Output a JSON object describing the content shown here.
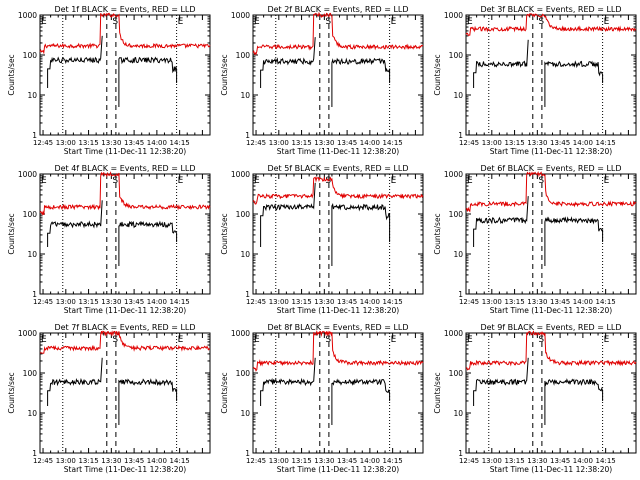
{
  "figure": {
    "ylabel": "Counts/sec",
    "xlabel": "Start Time (11-Dec-11 12:38:20)",
    "x_tick_labels": [
      "12:45",
      "13:00",
      "13:15",
      "13:30",
      "13:45",
      "14:00",
      "14:15"
    ],
    "y_tick_labels": [
      "1",
      "10",
      "100",
      "1000"
    ],
    "marker_letters": {
      "E": "E",
      "S": "S"
    },
    "colors": {
      "events": "#000000",
      "lld": "#e00000",
      "axes": "#000000"
    }
  },
  "chart_data": [
    {
      "type": "line",
      "title": "Det 1f BLACK = Events, RED = LLD",
      "x_range_min": [
        43,
        155
      ],
      "ylim": [
        1,
        1000
      ],
      "y_scale": "log",
      "grid_dotted_x_min": [
        58,
        133
      ],
      "dashed_x_min": [
        87,
        93
      ],
      "markers": [
        {
          "label": "E",
          "x_min": 43
        },
        {
          "label": "S",
          "x_min": 90
        },
        {
          "label": "E",
          "x_min": 133
        }
      ],
      "events": {
        "level": 75,
        "rise_start": 48,
        "peak_start": 83,
        "peak_end": 95,
        "end": 133
      },
      "lld": {
        "level": 170,
        "peak": 1000,
        "decay": 1.1,
        "end": 155
      }
    },
    {
      "type": "line",
      "title": "Det 2f BLACK = Events, RED = LLD",
      "x_range_min": [
        43,
        155
      ],
      "ylim": [
        1,
        1000
      ],
      "y_scale": "log",
      "grid_dotted_x_min": [
        58,
        133
      ],
      "dashed_x_min": [
        87,
        93
      ],
      "markers": [
        {
          "label": "E",
          "x_min": 43
        },
        {
          "label": "S",
          "x_min": 90
        },
        {
          "label": "E",
          "x_min": 133
        }
      ],
      "events": {
        "level": 70,
        "rise_start": 48,
        "peak_start": 83,
        "peak_end": 95,
        "end": 133
      },
      "lld": {
        "level": 160,
        "peak": 1000,
        "decay": 1.1,
        "end": 155
      }
    },
    {
      "type": "line",
      "title": "Det 3f BLACK = Events, RED = LLD",
      "x_range_min": [
        43,
        155
      ],
      "ylim": [
        1,
        1000
      ],
      "y_scale": "log",
      "grid_dotted_x_min": [
        58,
        133
      ],
      "dashed_x_min": [
        87,
        93
      ],
      "markers": [
        {
          "label": "E",
          "x_min": 43
        },
        {
          "label": "S",
          "x_min": 90
        },
        {
          "label": "E",
          "x_min": 133
        }
      ],
      "events": {
        "level": 60,
        "rise_start": 48,
        "peak_start": 83,
        "peak_end": 95,
        "end": 133
      },
      "lld": {
        "level": 450,
        "peak": 1000,
        "decay": 1.1,
        "end": 155
      }
    },
    {
      "type": "line",
      "title": "Det 4f BLACK = Events, RED = LLD",
      "x_range_min": [
        43,
        155
      ],
      "ylim": [
        1,
        1000
      ],
      "y_scale": "log",
      "grid_dotted_x_min": [
        58,
        133
      ],
      "dashed_x_min": [
        87,
        93
      ],
      "markers": [
        {
          "label": "E",
          "x_min": 43
        },
        {
          "label": "S",
          "x_min": 90
        },
        {
          "label": "E",
          "x_min": 133
        }
      ],
      "events": {
        "level": 55,
        "rise_start": 48,
        "peak_start": 83,
        "peak_end": 95,
        "end": 133
      },
      "lld": {
        "level": 150,
        "peak": 1000,
        "decay": 1.1,
        "end": 155
      }
    },
    {
      "type": "line",
      "title": "Det 5f BLACK = Events, RED = LLD",
      "x_range_min": [
        43,
        155
      ],
      "ylim": [
        1,
        1000
      ],
      "y_scale": "log",
      "grid_dotted_x_min": [
        58,
        133
      ],
      "dashed_x_min": [
        87,
        93
      ],
      "markers": [
        {
          "label": "E",
          "x_min": 43
        },
        {
          "label": "S",
          "x_min": 90
        },
        {
          "label": "E",
          "x_min": 133
        }
      ],
      "events": {
        "level": 150,
        "rise_start": 48,
        "peak_start": 83,
        "peak_end": 95,
        "end": 133
      },
      "lld": {
        "level": 280,
        "peak": 750,
        "decay": 1.1,
        "end": 155
      }
    },
    {
      "type": "line",
      "title": "Det 6f BLACK = Events, RED = LLD",
      "x_range_min": [
        43,
        155
      ],
      "ylim": [
        1,
        1000
      ],
      "y_scale": "log",
      "grid_dotted_x_min": [
        58,
        133
      ],
      "dashed_x_min": [
        87,
        93
      ],
      "markers": [
        {
          "label": "E",
          "x_min": 43
        },
        {
          "label": "S",
          "x_min": 90
        },
        {
          "label": "E",
          "x_min": 133
        }
      ],
      "events": {
        "level": 70,
        "rise_start": 48,
        "peak_start": 83,
        "peak_end": 95,
        "end": 133
      },
      "lld": {
        "level": 180,
        "peak": 1000,
        "decay": 1.1,
        "end": 155
      }
    },
    {
      "type": "line",
      "title": "Det 7f BLACK = Events, RED = LLD",
      "x_range_min": [
        43,
        155
      ],
      "ylim": [
        1,
        1000
      ],
      "y_scale": "log",
      "grid_dotted_x_min": [
        58,
        133
      ],
      "dashed_x_min": [
        87,
        93
      ],
      "markers": [
        {
          "label": "E",
          "x_min": 43
        },
        {
          "label": "S",
          "x_min": 90
        },
        {
          "label": "E",
          "x_min": 133
        }
      ],
      "events": {
        "level": 60,
        "rise_start": 48,
        "peak_start": 83,
        "peak_end": 95,
        "end": 133
      },
      "lld": {
        "level": 420,
        "peak": 1000,
        "decay": 1.1,
        "end": 155
      }
    },
    {
      "type": "line",
      "title": "Det 8f BLACK = Events, RED = LLD",
      "x_range_min": [
        43,
        155
      ],
      "ylim": [
        1,
        1000
      ],
      "y_scale": "log",
      "grid_dotted_x_min": [
        58,
        133
      ],
      "dashed_x_min": [
        87,
        93
      ],
      "markers": [
        {
          "label": "E",
          "x_min": 43
        },
        {
          "label": "S",
          "x_min": 90
        },
        {
          "label": "E",
          "x_min": 133
        }
      ],
      "events": {
        "level": 60,
        "rise_start": 48,
        "peak_start": 83,
        "peak_end": 95,
        "end": 133
      },
      "lld": {
        "level": 180,
        "peak": 1000,
        "decay": 1.1,
        "end": 155
      }
    },
    {
      "type": "line",
      "title": "Det 9f BLACK = Events, RED = LLD",
      "x_range_min": [
        43,
        155
      ],
      "ylim": [
        1,
        1000
      ],
      "y_scale": "log",
      "grid_dotted_x_min": [
        58,
        133
      ],
      "dashed_x_min": [
        87,
        93
      ],
      "markers": [
        {
          "label": "E",
          "x_min": 43
        },
        {
          "label": "S",
          "x_min": 90
        },
        {
          "label": "E",
          "x_min": 133
        }
      ],
      "events": {
        "level": 60,
        "rise_start": 48,
        "peak_start": 83,
        "peak_end": 95,
        "end": 133
      },
      "lld": {
        "level": 180,
        "peak": 1000,
        "decay": 1.1,
        "end": 155
      }
    }
  ]
}
